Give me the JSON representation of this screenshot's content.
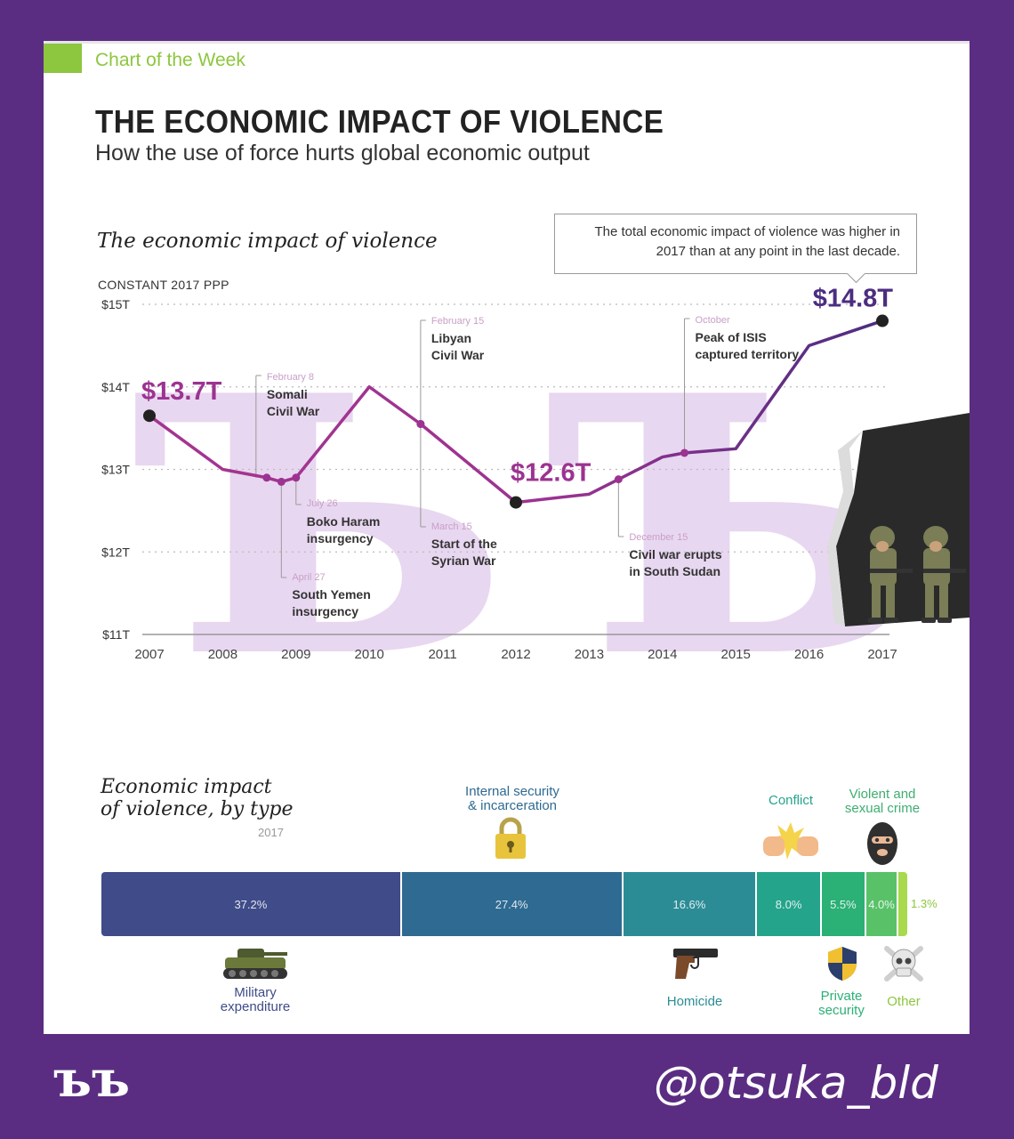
{
  "header": {
    "kicker": "Chart of the Week",
    "title": "THE ECONOMIC IMPACT OF VIOLENCE",
    "subtitle": "How the use of force hurts global economic output"
  },
  "line_section": {
    "title": "The economic impact of violence",
    "unit": "CONSTANT 2017 PPP",
    "callout": "The total economic impact of violence was higher in 2017 than at any point in the last decade."
  },
  "chart_data": [
    {
      "type": "line",
      "title": "The economic impact of violence",
      "ylabel": "CONSTANT 2017 PPP",
      "ylim": [
        11,
        15
      ],
      "y_ticks": [
        "$11T",
        "$12T",
        "$13T",
        "$14T",
        "$15T"
      ],
      "x_ticks": [
        "2007",
        "2008",
        "2009",
        "2010",
        "2011",
        "2012",
        "2013",
        "2014",
        "2015",
        "2016",
        "2017"
      ],
      "grid": "dotted horizontal",
      "color": "#9c3391",
      "x": [
        2007,
        2008,
        2008.6,
        2008.8,
        2009,
        2010,
        2010.7,
        2012,
        2013,
        2013.4,
        2014,
        2014.3,
        2015,
        2016,
        2017
      ],
      "y": [
        13.65,
        13.0,
        12.9,
        12.85,
        12.9,
        14.0,
        13.55,
        12.6,
        12.7,
        12.88,
        13.15,
        13.2,
        13.25,
        14.5,
        14.8
      ],
      "highlights": [
        {
          "x": 2007,
          "y": 13.65,
          "label": "$13.7T"
        },
        {
          "x": 2012,
          "y": 12.6,
          "label": "$12.6T"
        },
        {
          "x": 2017,
          "y": 14.8,
          "label": "$14.8T"
        }
      ],
      "events": [
        {
          "x": 2008.6,
          "y": 12.9,
          "date": "February 8",
          "text": [
            "Somali",
            "Civil War"
          ]
        },
        {
          "x": 2008.8,
          "y": 12.85,
          "date": "April 27",
          "text": [
            "South Yemen",
            "insurgency"
          ]
        },
        {
          "x": 2009,
          "y": 12.9,
          "date": "July 26",
          "text": [
            "Boko Haram",
            "insurgency"
          ]
        },
        {
          "x": 2010.7,
          "y": 13.55,
          "date": "February 15",
          "text": [
            "Libyan",
            "Civil War"
          ]
        },
        {
          "x": 2010.7,
          "y": 13.55,
          "date": "March 15",
          "text": [
            "Start of the",
            "Syrian War"
          ]
        },
        {
          "x": 2013.4,
          "y": 12.88,
          "date": "December 15",
          "text": [
            "Civil war erupts",
            "in South Sudan"
          ]
        },
        {
          "x": 2014.3,
          "y": 13.2,
          "date": "October",
          "text": [
            "Peak of ISIS",
            "captured territory"
          ]
        }
      ]
    },
    {
      "type": "bar",
      "title": "Economic impact of violence, by type",
      "subtitle": "2017",
      "stacked": true,
      "categories": [
        "Military expenditure",
        "Internal security & incarceration",
        "Homicide",
        "Conflict",
        "Private security",
        "Violent and sexual crime",
        "Other"
      ],
      "values": [
        37.2,
        27.4,
        16.6,
        8.0,
        5.5,
        4.0,
        1.3
      ],
      "labels": [
        "37.2%",
        "27.4%",
        "16.6%",
        "8.0%",
        "5.5%",
        "4.0%",
        "1.3%"
      ],
      "colors": [
        "#3f4c89",
        "#2e6a91",
        "#2c8c96",
        "#25a48c",
        "#2bb075",
        "#59c269",
        "#a9d94c"
      ]
    }
  ],
  "type_section": {
    "title_line1": "Economic impact",
    "title_line2": "of violence, by type",
    "year": "2017",
    "labels": {
      "military": [
        "Military",
        "expenditure"
      ],
      "internal": [
        "Internal security",
        "& incarceration"
      ],
      "homicide": "Homicide",
      "conflict": "Conflict",
      "private": [
        "Private",
        "security"
      ],
      "violent": [
        "Violent and",
        "sexual crime"
      ],
      "other": "Other"
    },
    "label_colors": {
      "military": "#3f4c89",
      "internal": "#2e6a91",
      "homicide": "#2c8c96",
      "conflict": "#25a48c",
      "private": "#2bb075",
      "violent": "#3fae70",
      "other": "#8dc63f"
    },
    "icons": [
      "tank-icon",
      "padlock-icon",
      "pistol-icon",
      "fists-icon",
      "shield-icon",
      "balaclava-icon",
      "skull-icon",
      "soldiers-illustration"
    ]
  },
  "footer": {
    "mark": "ъъ",
    "handle": "@otsuka_bld"
  },
  "colors": {
    "frame": "#5b2d82",
    "accent_green": "#8dc63f",
    "line": "#9c3391",
    "line_dark": "#4c2d80"
  }
}
